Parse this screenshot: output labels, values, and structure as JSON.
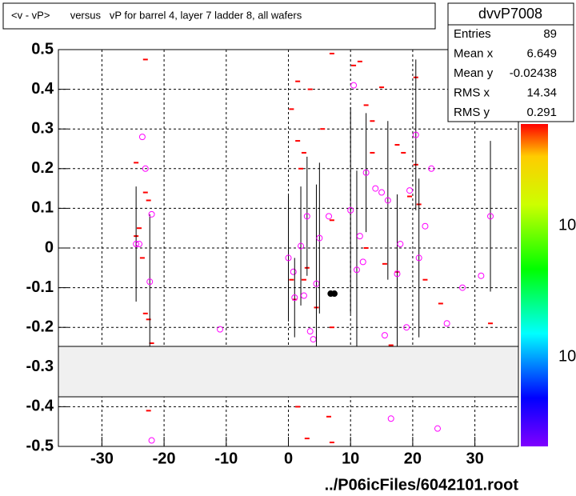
{
  "chart_data": {
    "type": "scatter",
    "title": "<v - vP>       versus   vP for barrel 4, layer 7 ladder 8, all wafers",
    "xlabel": "../P06icFiles/6042101.root",
    "xlim": [
      -37,
      37
    ],
    "ylim": [
      -0.5,
      0.5
    ],
    "xticks": [
      -30,
      -20,
      -10,
      0,
      10,
      20,
      30
    ],
    "yticks": [
      -0.5,
      -0.4,
      -0.3,
      -0.2,
      -0.1,
      0,
      0.1,
      0.2,
      0.3,
      0.4,
      0.5
    ],
    "grid": true,
    "series": [
      {
        "color": "#ff00ff",
        "x": [
          -24.5,
          -24,
          -23.5,
          -23,
          -22.3,
          -22,
          -11,
          0,
          0.8,
          1,
          2,
          2.5,
          3,
          3.5,
          4,
          4.5,
          5,
          6.5,
          10,
          10.5,
          11,
          11.5,
          12,
          12.5,
          14,
          15,
          15.5,
          16,
          17.5,
          18,
          19,
          19.5,
          20.5,
          21,
          22,
          23,
          24,
          25.5,
          28,
          31,
          32.5,
          16.5,
          -22
        ],
        "values": [
          0.01,
          0.01,
          0.28,
          0.2,
          -0.085,
          0.085,
          -0.205,
          -0.025,
          -0.06,
          -0.125,
          0.005,
          -0.12,
          0.08,
          -0.21,
          -0.23,
          -0.09,
          0.025,
          0.08,
          0.095,
          0.41,
          -0.055,
          0.03,
          -0.035,
          0.19,
          0.15,
          0.14,
          -0.22,
          0.12,
          -0.065,
          0.01,
          -0.2,
          0.145,
          0.285,
          -0.025,
          0.055,
          0.2,
          -0.455,
          -0.19,
          -0.1,
          -0.07,
          0.08,
          -0.43,
          -0.485
        ],
        "errors": [
          0.145,
          0,
          0,
          0,
          0.17,
          0,
          0,
          0.16,
          0,
          0.1,
          0.15,
          0,
          0.15,
          0,
          0,
          0.25,
          0.19,
          0,
          0.26,
          0,
          0.25,
          0,
          0,
          0.15,
          0,
          0,
          0,
          0.2,
          0.2,
          0,
          0,
          0,
          0.19,
          0.2,
          0,
          0,
          0,
          0,
          0,
          0,
          0.19,
          0,
          0
        ]
      },
      {
        "color": "#000000",
        "x": [
          6.8,
          7.4
        ],
        "values": [
          -0.115,
          -0.115
        ],
        "errors": [
          0,
          0
        ]
      }
    ],
    "cells": {
      "color": "#ff0000",
      "x": [
        -23,
        -24.5,
        -24,
        -24.5,
        -23.5,
        -23,
        -23,
        -22.5,
        -22.5,
        -22,
        0.5,
        0.5,
        1,
        1.5,
        1.5,
        2,
        2.5,
        2.5,
        3,
        3.5,
        4.5,
        5.5,
        7,
        7,
        7,
        10.5,
        11.5,
        12.5,
        12.5,
        13.5,
        13.5,
        15,
        15.5,
        16.5,
        17.5,
        17.5,
        18.5,
        19.5,
        20.5,
        20.5,
        21,
        22,
        24.5,
        32.5,
        1.5,
        6.5,
        3,
        7,
        -22.5
      ],
      "y": [
        0.475,
        0.215,
        0.05,
        0.03,
        -0.025,
        -0.165,
        0.14,
        0.12,
        -0.18,
        -0.24,
        0.35,
        -0.08,
        -0.13,
        0.42,
        0.27,
        0.2,
        0.24,
        -0.08,
        -0.05,
        0.4,
        -0.15,
        0.3,
        0.49,
        -0.2,
        0.07,
        0.46,
        0.47,
        0.36,
        0.0,
        0.32,
        0.24,
        0.405,
        -0.04,
        -0.245,
        0.26,
        -0.06,
        0.24,
        0.13,
        0.43,
        0.21,
        0.11,
        -0.08,
        -0.14,
        -0.19,
        -0.4,
        -0.425,
        -0.48,
        -0.49,
        -0.41
      ]
    },
    "stats": {
      "title": "dvvP7008",
      "rows": [
        {
          "label": "Entries",
          "value": 89
        },
        {
          "label": "Mean x",
          "value": 6.649
        },
        {
          "label": "Mean y",
          "value": -0.02438
        },
        {
          "label": "RMS x",
          "value": 14.34
        },
        {
          "label": "RMS y",
          "value": 0.291
        }
      ]
    },
    "z_tick_labels": [
      "10",
      "10"
    ]
  }
}
